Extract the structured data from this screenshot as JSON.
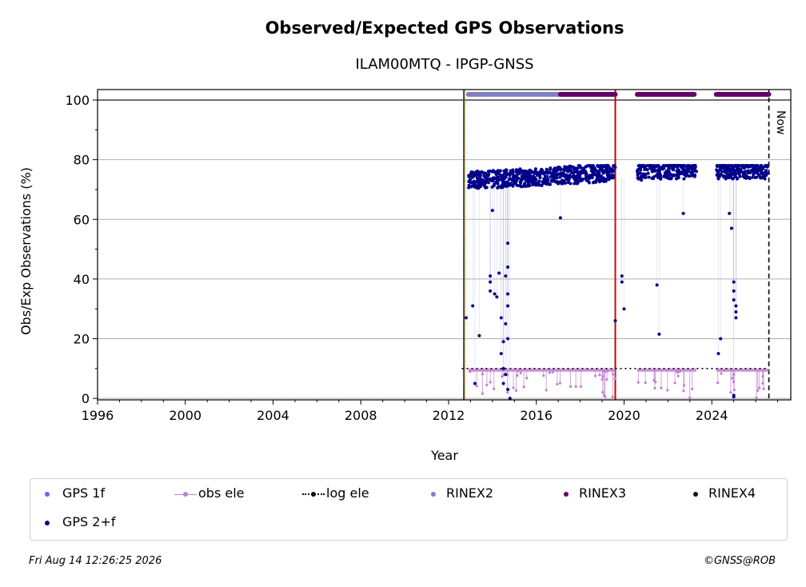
{
  "chart_data": {
    "type": "scatter",
    "title": "Observed/Expected GPS Observations",
    "subtitle": "ILAM00MTQ - IPGP-GNSS",
    "xlabel": "Year",
    "ylabel": "Obs/Exp Observations (%)",
    "xlim": [
      1996,
      2027.6
    ],
    "ylim": [
      -0.5,
      103.5
    ],
    "xticks": [
      "1996",
      "2000",
      "2004",
      "2008",
      "2012",
      "2016",
      "2020",
      "2024"
    ],
    "yticks": [
      "0",
      "20",
      "40",
      "60",
      "80",
      "100"
    ],
    "grid": "horizontal",
    "now_label": "Now",
    "vertical_lines": [
      {
        "x": 2012.7,
        "style": "green dashed / red"
      },
      {
        "x": 2019.6,
        "style": "red solid"
      },
      {
        "x": 2026.6,
        "style": "black dashed"
      }
    ],
    "rinex_bars": [
      {
        "name": "RINEX2",
        "color": "#8080c0",
        "x": [
          2012.9,
          2017.1
        ]
      },
      {
        "name": "RINEX3",
        "color": "#660066",
        "x": [
          2017.1,
          2019.6
        ]
      },
      {
        "name": "RINEX3",
        "color": "#660066",
        "x": [
          2020.6,
          2023.2
        ]
      },
      {
        "name": "RINEX3",
        "color": "#660066",
        "x": [
          2024.2,
          2026.6
        ]
      }
    ],
    "series": [
      {
        "name": "GPS 2+f",
        "color": "#00008b",
        "segments": [
          {
            "x": [
              2012.9,
              2019.6
            ],
            "y": [
              68,
              78
            ]
          },
          {
            "x": [
              2020.6,
              2023.3
            ],
            "y": [
              72,
              78
            ]
          },
          {
            "x": [
              2024.2,
              2026.6
            ],
            "y": [
              70,
              78
            ]
          }
        ],
        "outliers": [
          [
            2012.8,
            27
          ],
          [
            2013.1,
            31
          ],
          [
            2013.2,
            5
          ],
          [
            2013.4,
            21
          ],
          [
            2013.9,
            41
          ],
          [
            2013.9,
            39
          ],
          [
            2013.9,
            36
          ],
          [
            2014.0,
            63
          ],
          [
            2014.1,
            35
          ],
          [
            2014.2,
            34
          ],
          [
            2014.3,
            42
          ],
          [
            2014.4,
            27
          ],
          [
            2014.4,
            15
          ],
          [
            2014.5,
            19
          ],
          [
            2014.5,
            5
          ],
          [
            2014.5,
            10
          ],
          [
            2014.6,
            8
          ],
          [
            2014.6,
            41
          ],
          [
            2014.7,
            35
          ],
          [
            2014.7,
            31
          ],
          [
            2014.7,
            20
          ],
          [
            2014.7,
            52
          ],
          [
            2014.7,
            44
          ],
          [
            2014.7,
            3
          ],
          [
            2014.6,
            25
          ],
          [
            2014.8,
            0
          ],
          [
            2017.1,
            60.5
          ],
          [
            2019.6,
            26
          ],
          [
            2019.9,
            41
          ],
          [
            2019.9,
            39
          ],
          [
            2020.0,
            30
          ],
          [
            2021.5,
            38
          ],
          [
            2021.6,
            21.5
          ],
          [
            2022.7,
            62
          ],
          [
            2024.3,
            15
          ],
          [
            2024.4,
            20
          ],
          [
            2024.8,
            62
          ],
          [
            2024.9,
            57
          ],
          [
            2025.0,
            39
          ],
          [
            2025.0,
            36
          ],
          [
            2025.0,
            33
          ],
          [
            2025.1,
            31
          ],
          [
            2025.1,
            29
          ],
          [
            2025.1,
            27
          ],
          [
            2025.0,
            1
          ],
          [
            2025.0,
            0.5
          ]
        ]
      },
      {
        "name": "GPS 1f",
        "color": "#6464ff"
      },
      {
        "name": "obs ele",
        "color": "#c080d0",
        "y": 9.5
      },
      {
        "name": "log ele",
        "color": "#000000",
        "y": 10,
        "x": [
          2012.6,
          2026.6
        ]
      }
    ]
  },
  "legend": {
    "gps1f": "GPS 1f",
    "obsele": "obs ele",
    "logele": "log ele",
    "rinex2": "RINEX2",
    "rinex3": "RINEX3",
    "rinex4": "RINEX4",
    "gps2f": "GPS 2+f"
  },
  "legend_colors": {
    "gps1f": "#6464ff",
    "obsele": "#c080d0",
    "logele": "#000000",
    "rinex2": "#8080c0",
    "rinex3": "#660066",
    "rinex4": "#200020",
    "gps2f": "#00008b"
  },
  "footer": {
    "timestamp": "Fri Aug 14 12:26:25 2026",
    "copyright": "©GNSS@ROB"
  }
}
